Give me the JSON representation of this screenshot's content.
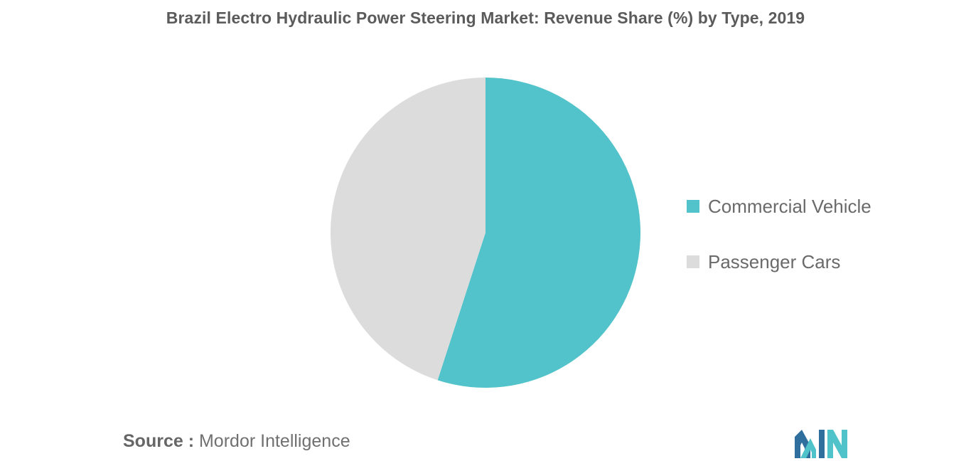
{
  "title": "Brazil Electro Hydraulic Power Steering Market: Revenue Share (%) by Type, 2019",
  "source": {
    "prefix": "Source :",
    "text": "Mordor Intelligence"
  },
  "logo": {
    "icon": "mordor-intelligence-logo",
    "colors": [
      "#2e6f9e",
      "#4fc3c9"
    ]
  },
  "chart_data": {
    "type": "pie",
    "title": "Brazil Electro Hydraulic Power Steering Market: Revenue Share (%) by Type, 2019",
    "categories": [
      "Commercial Vehicle",
      "Passenger Cars"
    ],
    "values": [
      55,
      45
    ],
    "colors": [
      "#52c3ca",
      "#dcdcdc"
    ],
    "start_angle": "12 o'clock",
    "direction": "clockwise",
    "legend": "right"
  }
}
